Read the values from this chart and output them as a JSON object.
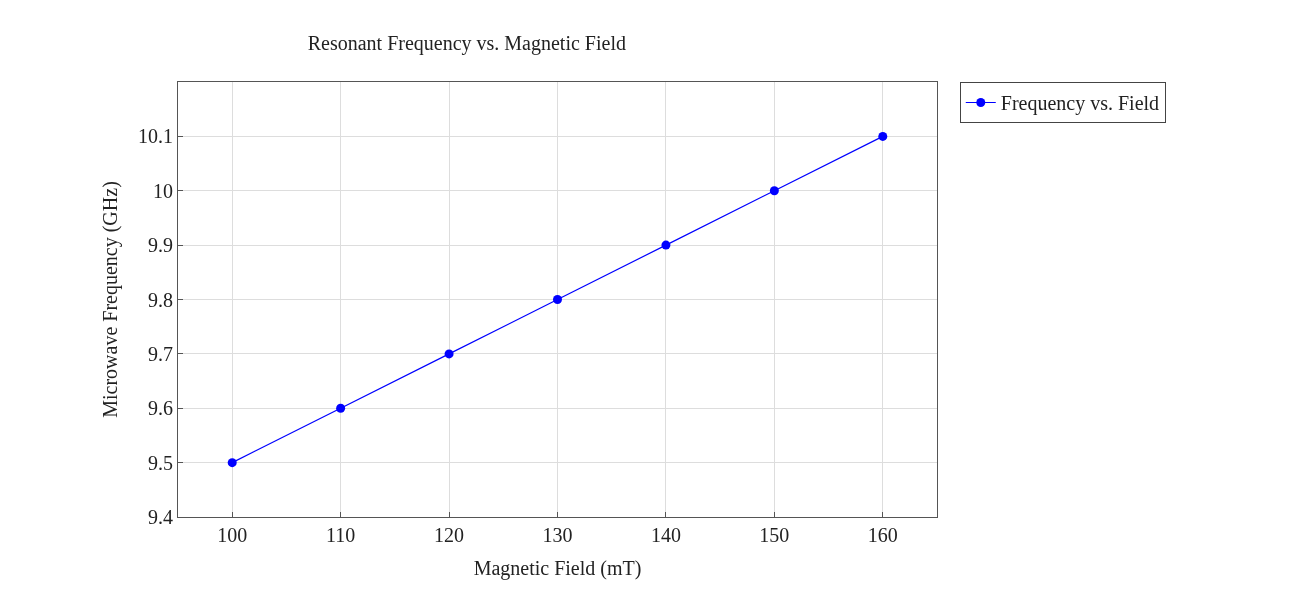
{
  "chart_data": {
    "type": "line",
    "title": "Resonant Frequency vs. Magnetic Field",
    "xlabel": "Magnetic Field (mT)",
    "ylabel": "Microwave Frequency (GHz)",
    "x": [
      100,
      110,
      120,
      130,
      140,
      150,
      160
    ],
    "series": [
      {
        "name": "Frequency vs. Field",
        "color": "#0000ff",
        "values": [
          9.5,
          9.6,
          9.7,
          9.8,
          9.9,
          10.0,
          10.1
        ]
      }
    ],
    "xlim": [
      95,
      165
    ],
    "xticks": [
      100,
      110,
      120,
      130,
      140,
      150,
      160
    ],
    "ylim": [
      9.4,
      10.2
    ],
    "yticks": [
      9.4,
      9.5,
      9.6,
      9.7,
      9.8,
      9.9,
      10,
      10.1
    ],
    "grid": true,
    "legend": "top right",
    "marker": "circle",
    "line_style": "solid"
  }
}
